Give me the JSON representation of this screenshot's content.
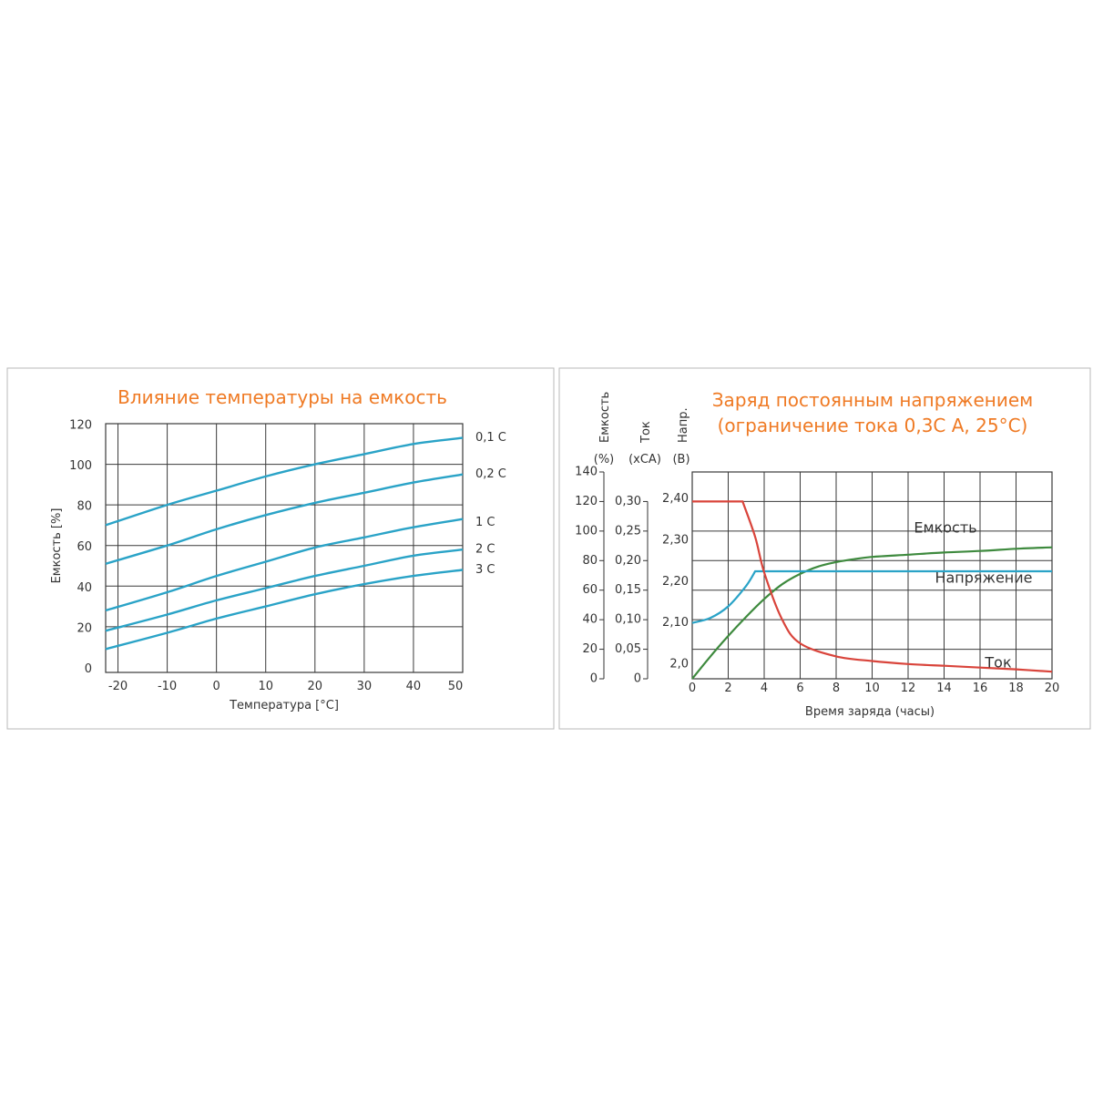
{
  "chart_data": [
    {
      "type": "line",
      "title": "Влияние температуры на емкость",
      "xlabel": "Температура [°C]",
      "ylabel": "Емкость [%]",
      "xlim": [
        -22.5,
        50
      ],
      "ylim": [
        -2.5,
        120
      ],
      "x_ticks": [
        -20,
        -10,
        0,
        10,
        20,
        30,
        40,
        50
      ],
      "y_ticks": [
        0,
        20,
        40,
        60,
        80,
        100,
        120
      ],
      "x_tick_labels": [
        "-20",
        "-10",
        "0",
        "10",
        "20",
        "30",
        "40",
        "50"
      ],
      "y_tick_labels": [
        "0",
        "20",
        "40",
        "60",
        "80",
        "100",
        "120"
      ],
      "grid": true,
      "legend": "right",
      "line_color": "#2aa3c7",
      "series": [
        {
          "name": "0,1 C",
          "x": [
            -22.5,
            -10,
            0,
            10,
            20,
            30,
            40,
            50
          ],
          "y": [
            70,
            80,
            87,
            94,
            100,
            105,
            110,
            113
          ]
        },
        {
          "name": "0,2 C",
          "x": [
            -22.5,
            -10,
            0,
            10,
            20,
            30,
            40,
            50
          ],
          "y": [
            51,
            60,
            68,
            75,
            81,
            86,
            91,
            95
          ]
        },
        {
          "name": "1 C",
          "x": [
            -22.5,
            -10,
            0,
            10,
            20,
            30,
            40,
            50
          ],
          "y": [
            28,
            37,
            45,
            52,
            59,
            64,
            69,
            73
          ]
        },
        {
          "name": "2 C",
          "x": [
            -22.5,
            -10,
            0,
            10,
            20,
            30,
            40,
            50
          ],
          "y": [
            18,
            26,
            33,
            39,
            45,
            50,
            55,
            58
          ]
        },
        {
          "name": "3 C",
          "x": [
            -22.5,
            -10,
            0,
            10,
            20,
            30,
            40,
            50
          ],
          "y": [
            9,
            17,
            24,
            30,
            36,
            41,
            45,
            48
          ]
        }
      ]
    },
    {
      "type": "line",
      "title": [
        "Заряд постоянным напряжением",
        "(ограничение тока 0,3С А, 25°С)"
      ],
      "xlabel": "Время заряда (часы)",
      "xlim": [
        0,
        20
      ],
      "x_ticks": [
        0,
        2,
        4,
        6,
        8,
        10,
        12,
        14,
        16,
        18,
        20
      ],
      "x_tick_labels": [
        "0",
        "2",
        "4",
        "6",
        "8",
        "10",
        "12",
        "14",
        "16",
        "18",
        "20"
      ],
      "grid": true,
      "axes": [
        {
          "title": "Емкость",
          "unit": "(%)",
          "range": [
            0,
            140
          ],
          "ticks": [
            "0",
            "20",
            "40",
            "60",
            "80",
            "100",
            "120",
            "140"
          ]
        },
        {
          "title": "Ток",
          "unit": "(xCA)",
          "range": [
            0,
            0.35
          ],
          "ticks": [
            "0",
            "0,05",
            "0,10",
            "0,15",
            "0,20",
            "0,25",
            "0,30"
          ]
        },
        {
          "title": "Напр.",
          "unit": "(B)",
          "range": [
            1.965,
            2.465
          ],
          "ticks": [
            "2,0",
            "2,10",
            "2,20",
            "2,30",
            "2,40"
          ]
        }
      ],
      "series": [
        {
          "name": "Емкость",
          "axis": "Емкость",
          "color": "#3e8a3e",
          "x": [
            0,
            1,
            2,
            3,
            4,
            5,
            6,
            7,
            8,
            9,
            10,
            12,
            14,
            16,
            18,
            20
          ],
          "y": [
            0,
            15,
            29,
            42,
            54,
            64,
            71,
            76,
            79,
            81,
            82.5,
            84,
            85.5,
            86.5,
            88,
            89
          ]
        },
        {
          "name": "Напряжение",
          "axis": "Напр.",
          "color": "#2aa3c7",
          "x": [
            0,
            1,
            2,
            3,
            3.5,
            20
          ],
          "y": [
            2.1,
            2.112,
            2.14,
            2.19,
            2.225,
            2.225
          ]
        },
        {
          "name": "Ток",
          "axis": "Ток",
          "color": "#d9443b",
          "x": [
            0,
            2.8,
            3.5,
            4,
            5,
            6,
            8,
            10,
            12,
            14,
            16,
            18,
            20
          ],
          "y": [
            0.3,
            0.3,
            0.24,
            0.18,
            0.1,
            0.06,
            0.038,
            0.03,
            0.025,
            0.022,
            0.019,
            0.016,
            0.012
          ]
        }
      ]
    }
  ]
}
